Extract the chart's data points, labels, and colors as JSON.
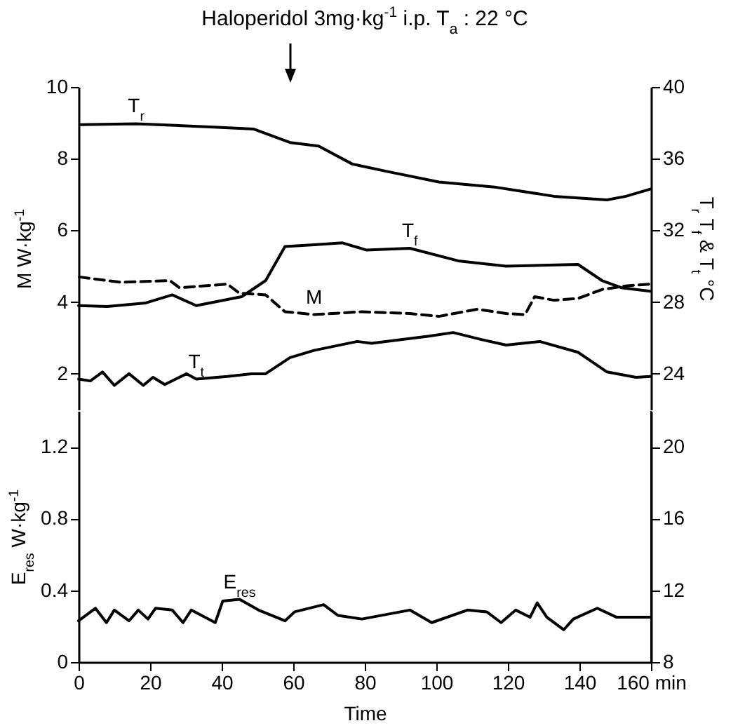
{
  "chart_data": [
    {
      "type": "line",
      "title": "Haloperidol   3mg·kg$^{-1}$  i.p.   T$_{a}$ : 22 °C",
      "ylabel": "M  W·kg$^{-1}$",
      "y2label": "T$_{r}$  T$_{f}$ & T$_{t}$   °C",
      "xlim": [
        0,
        160
      ],
      "ylim": [
        1,
        10
      ],
      "yticks": [
        2,
        4,
        6,
        8,
        10
      ],
      "y2lim": [
        22,
        40
      ],
      "y2ticks": [
        24,
        28,
        32,
        36,
        40
      ],
      "tick_labels": "y",
      "grid": false,
      "legend": false,
      "series": [
        {
          "name": "T$_{r}$",
          "color": "#000000",
          "axis": "y2",
          "line_style": "solid",
          "x": [
            0.6,
            16.1,
            38.9,
            49,
            59.1,
            67.1,
            76.5,
            85.9,
            100.7,
            116.8,
            132.9,
            147.7,
            153,
            159.8
          ],
          "values": [
            37.9,
            37.95,
            37.75,
            37.65,
            36.9,
            36.7,
            35.7,
            35.3,
            34.7,
            34.4,
            33.9,
            33.7,
            33.9,
            34.3
          ]
        },
        {
          "name": "T$_{f}$",
          "color": "#000000",
          "axis": "y2",
          "line_style": "solid",
          "x": [
            0,
            8,
            18.8,
            26.2,
            32.9,
            45.6,
            52.3,
            57.7,
            65.8,
            73.8,
            80.5,
            92.6,
            106.1,
            119.5,
            139.6,
            146.3,
            151.7,
            159.8
          ],
          "values": [
            27.8,
            27.75,
            27.95,
            28.4,
            27.8,
            28.3,
            29.2,
            31.1,
            31.2,
            31.3,
            30.9,
            31,
            30.3,
            30,
            30.1,
            29.2,
            28.8,
            28.6
          ]
        },
        {
          "name": "M",
          "color": "#000000",
          "axis": "y",
          "line_style": "dashed",
          "x": [
            0.2,
            12,
            25.5,
            28.2,
            41.6,
            44.9,
            52.3,
            57.7,
            65.8,
            79.2,
            92.6,
            100.7,
            111.4,
            119.5,
            124.8,
            127.5,
            132.9,
            139.6,
            146.3,
            153,
            159.7
          ],
          "values": [
            4.7,
            4.55,
            4.6,
            4.4,
            4.5,
            4.25,
            4.2,
            3.73,
            3.65,
            3.73,
            3.68,
            3.6,
            3.8,
            3.68,
            3.65,
            4.15,
            4.05,
            4.1,
            4.35,
            4.45,
            4.5
          ]
        },
        {
          "name": "T$_{t}$",
          "color": "#000000",
          "axis": "y2",
          "line_style": "solid",
          "x": [
            0,
            3.3,
            6.7,
            10,
            14.1,
            18.1,
            20.8,
            24.1,
            30.2,
            32.9,
            41.6,
            48.3,
            52.3,
            59.1,
            65.8,
            77.9,
            81.9,
            98,
            104.7,
            112.8,
            119.5,
            128.9,
            139.6,
            147.7,
            155.8,
            159.8
          ],
          "values": [
            23.7,
            23.6,
            24.1,
            23.35,
            24,
            23.35,
            23.8,
            23.4,
            24,
            23.7,
            23.85,
            24,
            24,
            24.9,
            25.3,
            25.8,
            25.7,
            26.1,
            26.3,
            25.9,
            25.6,
            25.8,
            25.2,
            24.1,
            23.8,
            23.85
          ]
        }
      ]
    },
    {
      "type": "line",
      "xlabel": "Time",
      "ylabel": "E$_{res}$  W·kg$^{-1}$",
      "xlim": [
        0,
        160
      ],
      "xticks": [
        0,
        20,
        40,
        60,
        80,
        100,
        120,
        140,
        {
          "value": 160,
          "label": "160 min"
        }
      ],
      "ylim": [
        0,
        1.4
      ],
      "yticks": [
        0,
        0.4,
        0.8,
        1.2
      ],
      "y2lim": [
        8,
        22
      ],
      "y2ticks": [
        8,
        12,
        16,
        20
      ],
      "grid": false,
      "legend": false,
      "series": [
        {
          "name": "E$_{res}$",
          "color": "#000000",
          "axis": "y",
          "line_style": "solid",
          "x": [
            0,
            4.7,
            7.8,
            10,
            14.1,
            16.7,
            19.4,
            21.5,
            26.2,
            29.2,
            31.5,
            38.2,
            40.3,
            45,
            50.3,
            57.7,
            60.4,
            68.5,
            72.5,
            79.2,
            92.6,
            98.7,
            108.7,
            114.1,
            118.1,
            122.2,
            126.2,
            128.2,
            130.9,
            135.6,
            138.3,
            145,
            150.4,
            159.8
          ],
          "values": [
            0.23,
            0.3,
            0.22,
            0.29,
            0.23,
            0.29,
            0.24,
            0.3,
            0.29,
            0.22,
            0.29,
            0.22,
            0.34,
            0.35,
            0.29,
            0.23,
            0.28,
            0.32,
            0.26,
            0.24,
            0.29,
            0.22,
            0.29,
            0.28,
            0.22,
            0.29,
            0.25,
            0.33,
            0.25,
            0.18,
            0.24,
            0.3,
            0.25,
            0.25
          ]
        }
      ]
    }
  ]
}
